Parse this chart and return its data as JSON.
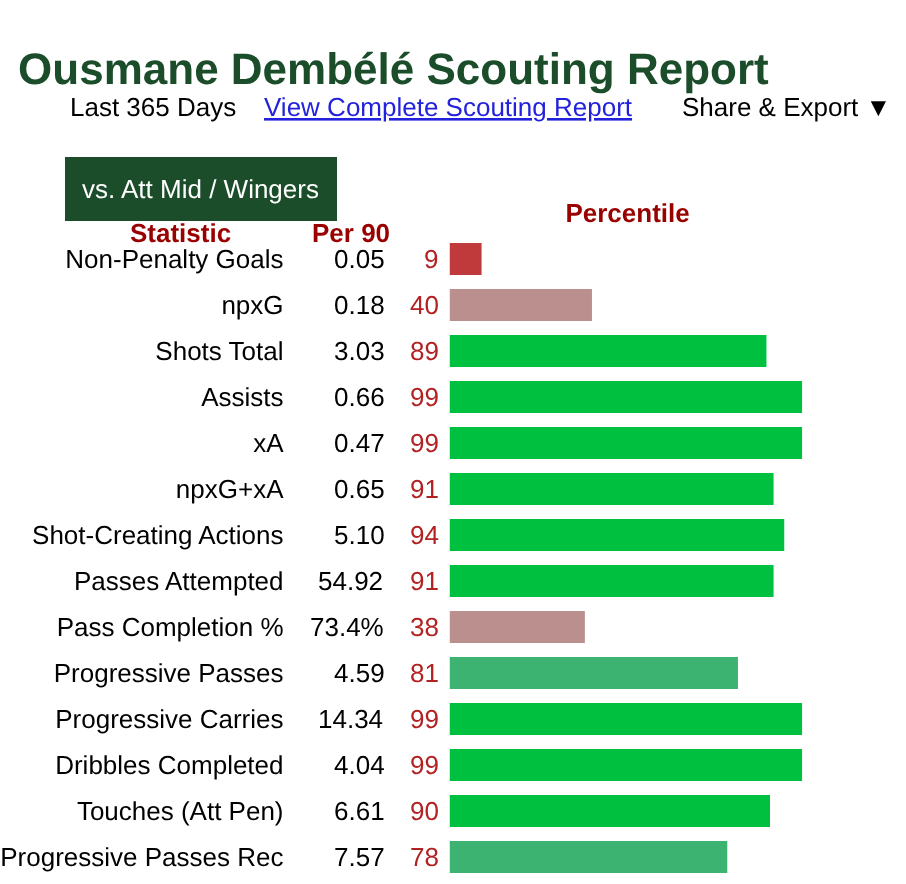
{
  "chart_data": {
    "type": "bar",
    "orientation": "horizontal",
    "title": "Ousmane Dembélé Scouting Report",
    "subtitle": "vs. Att Mid / Wingers",
    "xlabel": "Percentile",
    "categories": [
      "Non-Penalty Goals",
      "npxG",
      "Shots Total",
      "Assists",
      "xA",
      "npxG+xA",
      "Shot-Creating Actions",
      "Passes Attempted",
      "Pass Completion %",
      "Progressive Passes",
      "Progressive Carries",
      "Dribbles Completed",
      "Touches (Att Pen)",
      "Progressive Passes Rec"
    ],
    "values": [
      9,
      40,
      89,
      99,
      99,
      91,
      94,
      91,
      38,
      81,
      99,
      99,
      90,
      78
    ],
    "colors": [
      "#c0393b",
      "#bc8f8f",
      "#00c040",
      "#00c040",
      "#00c040",
      "#00c040",
      "#00c040",
      "#00c040",
      "#bc8f8f",
      "#3cb371",
      "#00c040",
      "#00c040",
      "#00c040",
      "#3cb371"
    ],
    "xlim": [
      0,
      100
    ],
    "data_labels": true,
    "tick_labels": "y",
    "annotations": [
      "Last 365 Days",
      "View Complete Scouting Report",
      "Share & Export ▼",
      "Statistic",
      "Per 90",
      "0.05",
      "0.18",
      "3.03",
      "0.66",
      "0.47",
      "0.65",
      "5.10",
      "54.92",
      "73.4%",
      "4.59",
      "14.34",
      "4.04",
      "6.61",
      "7.57"
    ]
  }
}
